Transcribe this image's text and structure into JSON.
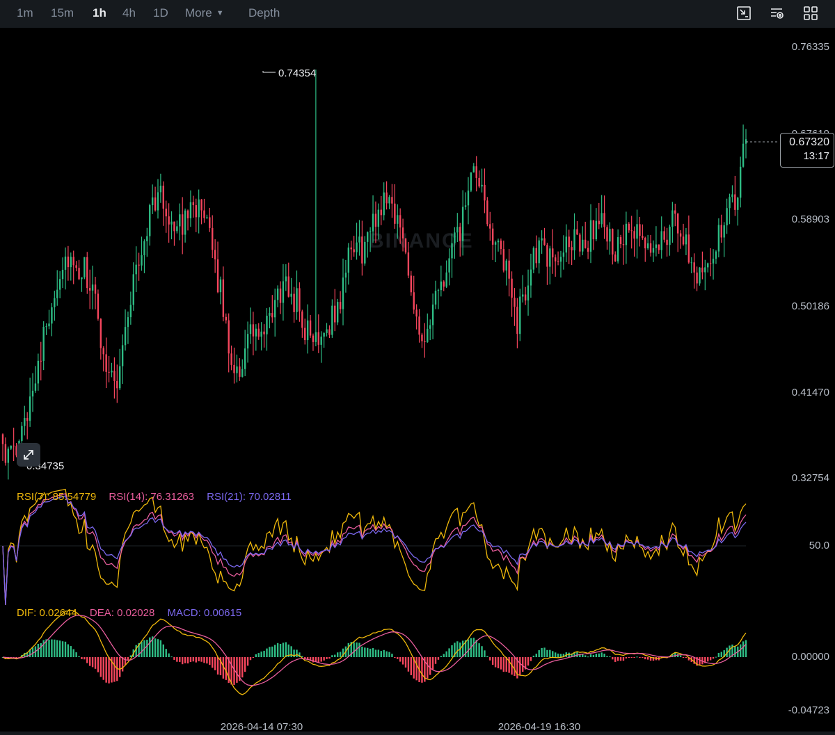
{
  "toolbar": {
    "timeframes": [
      "1m",
      "15m",
      "1h",
      "4h",
      "1D"
    ],
    "active_timeframe": "1h",
    "more_label": "More",
    "depth_label": "Depth",
    "tool_icons": [
      "chart-settings-icon",
      "indicator-settings-icon",
      "layout-grid-icon"
    ]
  },
  "watermark": "BINANCE",
  "colors": {
    "up": "#2ebd85",
    "down": "#f6465d",
    "background": "#000000",
    "rsi7": "#f0b90b",
    "rsi14": "#e85d9c",
    "rsi21": "#7b68ee",
    "dif": "#f0b90b",
    "dea": "#e85d9c",
    "macd": "#7b68ee"
  },
  "price_axis": [
    "0.76335",
    "0.67619",
    "0.58903",
    "0.50186",
    "0.41470",
    "0.32754"
  ],
  "current_price": {
    "price": "0.67320",
    "countdown": "13:17"
  },
  "high_marker": "0.74354",
  "low_marker": "0.34735",
  "rsi": {
    "labels": [
      {
        "text": "RSI(7): 85.54779",
        "color": "#f0b90b"
      },
      {
        "text": "RSI(14): 76.31263",
        "color": "#e85d9c"
      },
      {
        "text": "RSI(21): 70.02811",
        "color": "#7b68ee"
      }
    ],
    "axis_label": "50.0"
  },
  "macd": {
    "labels": [
      {
        "text": "DIF: 0.02644",
        "color": "#f0b90b"
      },
      {
        "text": "DEA: 0.02028",
        "color": "#e85d9c"
      },
      {
        "text": "MACD: 0.00615",
        "color": "#7b68ee"
      }
    ],
    "axis_labels": [
      "0.00000",
      "-0.04723"
    ]
  },
  "time_axis": [
    "2026-04-14 07:30",
    "2026-04-19 16:30"
  ],
  "chart_data": {
    "type": "candlestick",
    "interval": "1h",
    "price_range": [
      0.32754,
      0.76335
    ],
    "anchors_close": [
      0.365,
      0.35,
      0.36,
      0.4,
      0.44,
      0.47,
      0.51,
      0.54,
      0.555,
      0.53,
      0.54,
      0.52,
      0.47,
      0.44,
      0.43,
      0.48,
      0.53,
      0.56,
      0.6,
      0.62,
      0.6,
      0.59,
      0.58,
      0.62,
      0.6,
      0.58,
      0.55,
      0.5,
      0.45,
      0.44,
      0.47,
      0.48,
      0.47,
      0.5,
      0.52,
      0.52,
      0.51,
      0.48,
      0.47,
      0.48,
      0.49,
      0.5,
      0.54,
      0.57,
      0.56,
      0.58,
      0.6,
      0.62,
      0.6,
      0.57,
      0.53,
      0.48,
      0.47,
      0.51,
      0.53,
      0.56,
      0.58,
      0.62,
      0.64,
      0.6,
      0.58,
      0.55,
      0.53,
      0.49,
      0.52,
      0.56,
      0.56,
      0.55,
      0.56,
      0.56,
      0.58,
      0.56,
      0.58,
      0.59,
      0.58,
      0.56,
      0.57,
      0.58,
      0.57,
      0.56,
      0.57,
      0.575,
      0.59,
      0.58,
      0.56,
      0.54,
      0.55,
      0.56,
      0.58,
      0.6,
      0.62,
      0.673
    ],
    "high": 0.74354,
    "low": 0.34735,
    "last": 0.6732,
    "rsi": {
      "rsi7": 85.54779,
      "rsi14": 76.31263,
      "rsi21": 70.02811,
      "midline": 50.0
    },
    "macd": {
      "dif": 0.02644,
      "dea": 0.02028,
      "macd": 0.00615,
      "axis": [
        0.0,
        -0.04723
      ]
    }
  }
}
